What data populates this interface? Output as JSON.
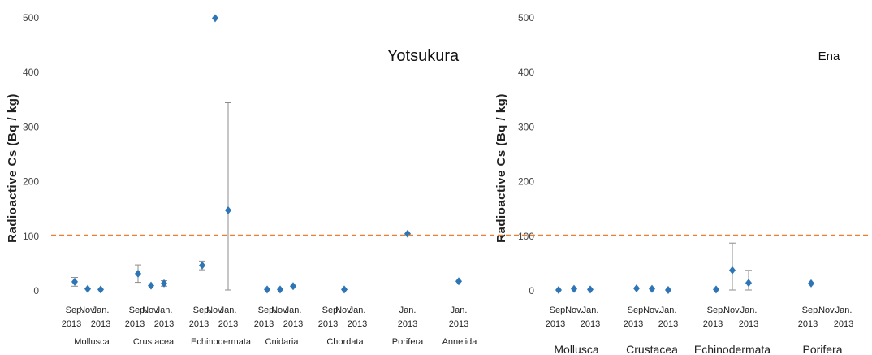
{
  "chart_data": [
    {
      "type": "scatter",
      "title": "Yotsukura",
      "ylabel": "Radioactive Cs (Bq / kg)",
      "ylim": [
        0,
        500
      ],
      "yticks": [
        0,
        100,
        200,
        300,
        400,
        500
      ],
      "reference_line": 100,
      "reference_line_color": "#ed7d31",
      "marker_color": "#2e75b6",
      "groups": [
        {
          "name": "Mollusca",
          "labels": [
            [
              "Sep.",
              "2013"
            ],
            [
              "Nov.",
              ""
            ],
            [
              "Jan.",
              "2013"
            ]
          ]
        },
        {
          "name": "Crustacea",
          "labels": [
            [
              "Sep.",
              "2013"
            ],
            [
              "Nov.",
              ""
            ],
            [
              "Jan.",
              "2013"
            ]
          ]
        },
        {
          "name": "Echinodermata",
          "labels": [
            [
              "Sep.",
              "2013"
            ],
            [
              "Nov.",
              ""
            ],
            [
              "Jan.",
              "2013"
            ]
          ]
        },
        {
          "name": "Cnidaria",
          "labels": [
            [
              "Sep.",
              "2013"
            ],
            [
              "Nov.",
              ""
            ],
            [
              "Jan.",
              "2013"
            ]
          ]
        },
        {
          "name": "Chordata",
          "labels": [
            [
              "Sep.",
              "2013"
            ],
            [
              "Nov.",
              ""
            ],
            [
              "Jan.",
              "2013"
            ]
          ]
        },
        {
          "name": "Porifera",
          "labels": [
            [
              "Jan.",
              "2013"
            ]
          ]
        },
        {
          "name": "Annelida",
          "labels": [
            [
              "Jan.",
              "2013"
            ]
          ]
        }
      ],
      "points": [
        {
          "group": "Mollusca",
          "slot": 0,
          "y": 15,
          "err": 8
        },
        {
          "group": "Mollusca",
          "slot": 1,
          "y": 2,
          "err": 0
        },
        {
          "group": "Mollusca",
          "slot": 2,
          "y": 1,
          "err": 0
        },
        {
          "group": "Crustacea",
          "slot": 0,
          "y": 30,
          "err": 16
        },
        {
          "group": "Crustacea",
          "slot": 1,
          "y": 8,
          "err": 0
        },
        {
          "group": "Crustacea",
          "slot": 2,
          "y": 12,
          "err": 5
        },
        {
          "group": "Echinodermata",
          "slot": 0,
          "y": 45,
          "err": 8
        },
        {
          "group": "Echinodermata",
          "slot": 1,
          "y": 498,
          "err": 0
        },
        {
          "group": "Echinodermata",
          "slot": 2,
          "y": 146,
          "err": 197
        },
        {
          "group": "Cnidaria",
          "slot": 0,
          "y": 1,
          "err": 0
        },
        {
          "group": "Cnidaria",
          "slot": 1,
          "y": 1,
          "err": 0
        },
        {
          "group": "Cnidaria",
          "slot": 2,
          "y": 7,
          "err": 0
        },
        {
          "group": "Chordata",
          "slot": 1,
          "y": 1,
          "err": 0
        },
        {
          "group": "Porifera",
          "slot": 0,
          "y": 103,
          "err": 0
        },
        {
          "group": "Annelida",
          "slot": 0,
          "y": 16,
          "err": 0
        }
      ]
    },
    {
      "type": "scatter",
      "title": "Ena",
      "ylabel": "Radioactive Cs (Bq / kg)",
      "ylim": [
        0,
        500
      ],
      "yticks": [
        0,
        100,
        200,
        300,
        400,
        500
      ],
      "reference_line": 100,
      "reference_line_color": "#ed7d31",
      "marker_color": "#2e75b6",
      "groups": [
        {
          "name": "Mollusca",
          "labels": [
            [
              "Sep.",
              "2013"
            ],
            [
              "Nov.",
              ""
            ],
            [
              "Jan.",
              "2013"
            ]
          ]
        },
        {
          "name": "Crustacea",
          "labels": [
            [
              "Sep.",
              "2013"
            ],
            [
              "Nov.",
              ""
            ],
            [
              "Jan.",
              "2013"
            ]
          ]
        },
        {
          "name": "Echinodermata",
          "labels": [
            [
              "Sep.",
              "2013"
            ],
            [
              "Nov.",
              ""
            ],
            [
              "Jan.",
              "2013"
            ]
          ]
        },
        {
          "name": "Porifera",
          "labels": [
            [
              "Sep.",
              "2013"
            ],
            [
              "Nov.",
              ""
            ],
            [
              "Jan.",
              "2013"
            ]
          ]
        }
      ],
      "points": [
        {
          "group": "Mollusca",
          "slot": 0,
          "y": 0,
          "err": 0
        },
        {
          "group": "Mollusca",
          "slot": 1,
          "y": 2,
          "err": 0
        },
        {
          "group": "Mollusca",
          "slot": 2,
          "y": 1,
          "err": 0
        },
        {
          "group": "Crustacea",
          "slot": 0,
          "y": 3,
          "err": 0
        },
        {
          "group": "Crustacea",
          "slot": 1,
          "y": 2,
          "err": 0
        },
        {
          "group": "Crustacea",
          "slot": 2,
          "y": 0,
          "err": 0
        },
        {
          "group": "Echinodermata",
          "slot": 0,
          "y": 1,
          "err": 0
        },
        {
          "group": "Echinodermata",
          "slot": 1,
          "y": 36,
          "err": 50
        },
        {
          "group": "Echinodermata",
          "slot": 2,
          "y": 13,
          "err": 23
        },
        {
          "group": "Porifera",
          "slot": 0,
          "y": 12,
          "err": 0
        }
      ]
    }
  ]
}
